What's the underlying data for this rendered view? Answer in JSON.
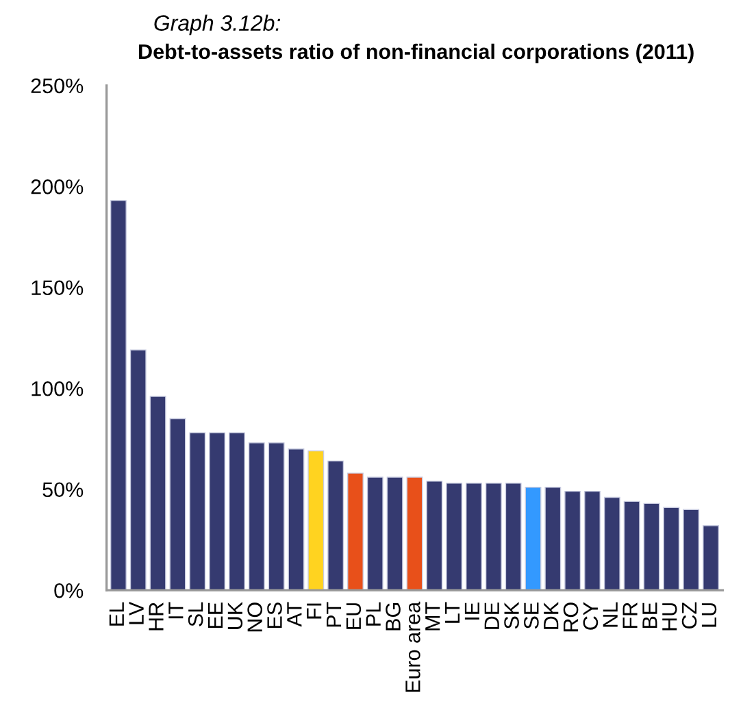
{
  "chart_data": {
    "type": "bar",
    "title": "Debt-to-assets ratio of non-financial corporations (2011)",
    "annotations": [
      "Graph 3.12b:"
    ],
    "categories": [
      "EL",
      "LV",
      "HR",
      "IT",
      "SL",
      "EE",
      "UK",
      "NO",
      "ES",
      "AT",
      "FI",
      "PT",
      "EU",
      "PL",
      "BG",
      "Euro area",
      "MT",
      "LT",
      "IE",
      "DE",
      "SK",
      "SE",
      "DK",
      "RO",
      "CY",
      "NL",
      "FR",
      "BE",
      "HU",
      "CZ",
      "LU"
    ],
    "values": [
      193,
      119,
      96,
      85,
      78,
      78,
      78,
      73,
      73,
      70,
      69,
      64,
      58,
      56,
      56,
      56,
      54,
      53,
      53,
      53,
      53,
      51,
      51,
      49,
      49,
      46,
      44,
      43,
      41,
      40,
      32
    ],
    "colors": [
      "#353a70",
      "#353a70",
      "#353a70",
      "#353a70",
      "#353a70",
      "#353a70",
      "#353a70",
      "#353a70",
      "#353a70",
      "#353a70",
      "#ffd320",
      "#353a70",
      "#e8501a",
      "#353a70",
      "#353a70",
      "#e8501a",
      "#353a70",
      "#353a70",
      "#353a70",
      "#353a70",
      "#353a70",
      "#3399ff",
      "#353a70",
      "#353a70",
      "#353a70",
      "#353a70",
      "#353a70",
      "#353a70",
      "#353a70",
      "#353a70",
      "#353a70"
    ],
    "ylim": [
      0,
      250
    ],
    "yticks": [
      {
        "value": 0,
        "label": "0%"
      },
      {
        "value": 50,
        "label": "50%"
      },
      {
        "value": 100,
        "label": "100%"
      },
      {
        "value": 150,
        "label": "150%"
      },
      {
        "value": 200,
        "label": "200%"
      },
      {
        "value": 250,
        "label": "250%"
      }
    ],
    "grid": false,
    "legend": false
  }
}
